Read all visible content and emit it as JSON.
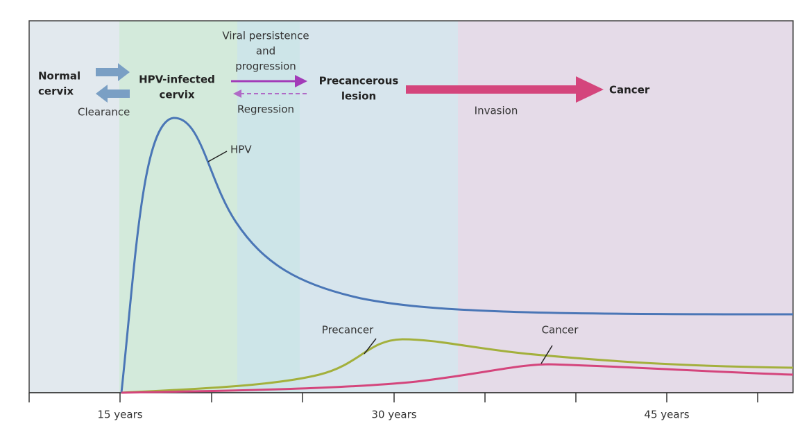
{
  "stages": {
    "normal": [
      "Normal",
      "cervix"
    ],
    "clearance": "Clearance",
    "hpv_infected": [
      "HPV-infected",
      "cervix"
    ],
    "persistence": [
      "Viral persistence",
      "and",
      "progression"
    ],
    "regression": "Regression",
    "precancerous": [
      "Precancerous",
      "lesion"
    ],
    "invasion": "Invasion",
    "cancer": "Cancer"
  },
  "curves": {
    "hpv": "HPV",
    "precancer": "Precancer",
    "cancer": "Cancer"
  },
  "axis": {
    "labels": [
      "15 years",
      "30 years",
      "45 years"
    ]
  }
}
